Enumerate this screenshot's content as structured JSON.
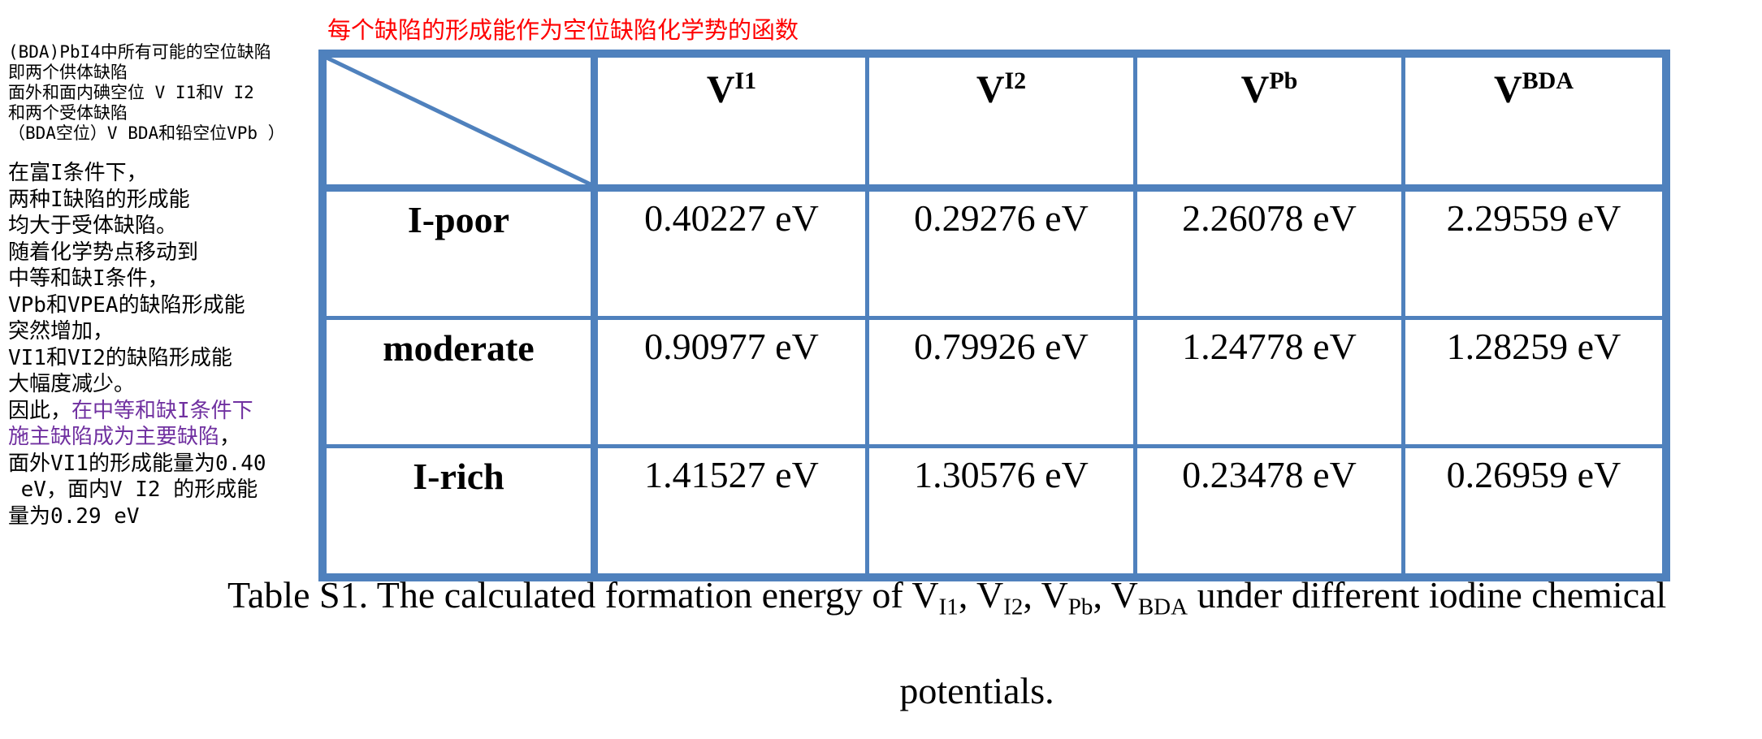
{
  "annotation_title": "每个缺陷的形成能作为空位缺陷化学势的函数",
  "notes_block1": [
    "(BDA)PbI4中所有可能的空位缺陷",
    "即两个供体缺陷",
    "面外和面内碘空位 V I1和V I2",
    "和两个受体缺陷",
    "（BDA空位）V BDA和铅空位VPb ）"
  ],
  "notes_block2": [
    "在富I条件下，",
    "两种I缺陷的形成能",
    "均大于受体缺陷。",
    "随着化学势点移动到",
    "中等和缺I条件，",
    "VPb和VPEA的缺陷形成能",
    "突然增加，",
    "VI1和VI2的缺陷形成能",
    "大幅度减少。"
  ],
  "notes_conclusion_prefix": "因此，",
  "notes_conclusion_purple_1": "在中等和缺I条件下",
  "notes_conclusion_purple_2": "施主缺陷成为主要缺陷",
  "notes_conclusion_comma": "，",
  "notes_block3": [
    "面外VI1的形成能量为0.40",
    " eV，面内V I2 的形成能",
    "量为0.29 eV"
  ],
  "table": {
    "columns": [
      {
        "main": "V",
        "sub": "I1"
      },
      {
        "main": "V",
        "sub": "I2"
      },
      {
        "main": "V",
        "sub": "Pb"
      },
      {
        "main": "V",
        "sub": "BDA"
      }
    ],
    "rows": [
      {
        "label": "I-poor",
        "values": [
          "0.40227 eV",
          "0.29276 eV",
          "2.26078 eV",
          "2.29559 eV"
        ]
      },
      {
        "label": "moderate",
        "values": [
          "0.90977 eV",
          "0.79926 eV",
          "1.24778 eV",
          "1.28259 eV"
        ]
      },
      {
        "label": "I-rich",
        "values": [
          "1.41527 eV",
          "1.30576 eV",
          "0.23478 eV",
          "0.26959 eV"
        ]
      }
    ]
  },
  "caption": {
    "prefix": "Table S1. The calculated formation energy of ",
    "v": "V",
    "s1": "I1",
    "s2": "I2",
    "s3": "Pb",
    "s4": "BDA",
    "sep": ", ",
    "suffix": " under different iodine chemical",
    "line2": "potentials."
  },
  "colors": {
    "table_border": "#4f81bd",
    "annotation_red": "#ff0000",
    "highlight_purple": "#7030a0"
  }
}
